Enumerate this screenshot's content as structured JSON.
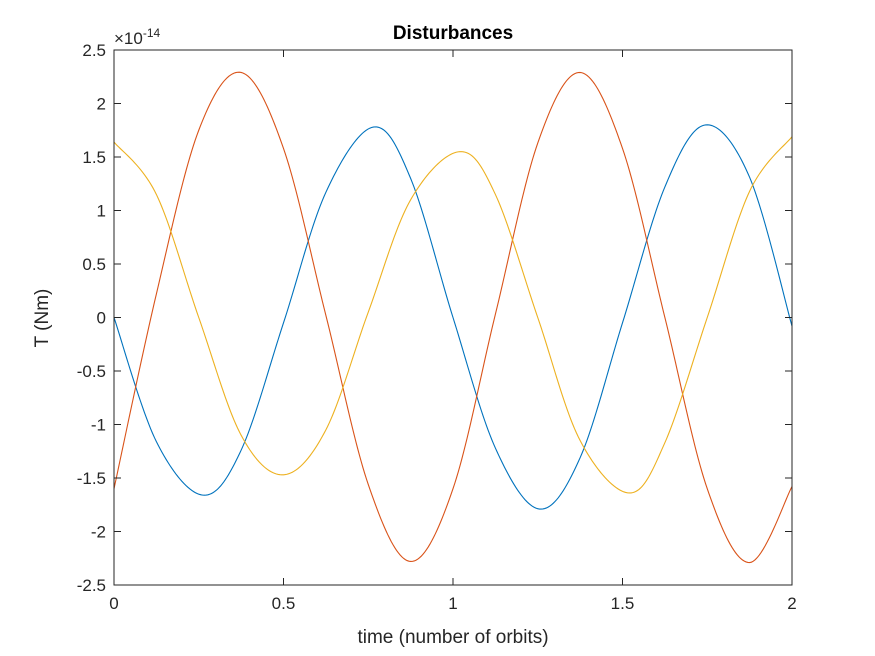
{
  "chart_data": {
    "type": "line",
    "title": "Disturbances",
    "xlabel": "time (number of orbits)",
    "ylabel": "T (Nm)",
    "exponent_base": "×10",
    "exponent_power": "-14",
    "xlim": [
      0,
      2
    ],
    "ylim": [
      -2.5,
      2.5
    ],
    "xticks": [
      0,
      0.5,
      1,
      1.5,
      2
    ],
    "xtick_labels": [
      "0",
      "0.5",
      "1",
      "1.5",
      "2"
    ],
    "yticks": [
      -2.5,
      -2,
      -1.5,
      -1,
      -0.5,
      0,
      0.5,
      1,
      1.5,
      2,
      2.5
    ],
    "ytick_labels": [
      "-2.5",
      "-2",
      "-1.5",
      "-1",
      "-0.5",
      "0",
      "0.5",
      "1",
      "1.5",
      "2",
      "2.5"
    ],
    "grid": false,
    "series": [
      {
        "color": "#0072BD",
        "x": [
          0,
          0.125,
          0.262,
          0.375,
          0.5,
          0.625,
          0.765,
          0.875,
          1.0,
          1.125,
          1.255,
          1.375,
          1.5,
          1.625,
          1.745,
          1.875,
          2.0
        ],
        "y": [
          0.0,
          -1.16,
          -1.66,
          -1.24,
          -0.05,
          1.17,
          1.78,
          1.3,
          0.0,
          -1.22,
          -1.79,
          -1.31,
          -0.05,
          1.22,
          1.8,
          1.31,
          -0.08
        ]
      },
      {
        "color": "#D95319",
        "x": [
          0,
          0.125,
          0.25,
          0.375,
          0.5,
          0.625,
          0.75,
          0.875,
          1.0,
          1.125,
          1.25,
          1.375,
          1.5,
          1.625,
          1.75,
          1.875,
          2.0
        ],
        "y": [
          -1.6,
          0.22,
          1.75,
          2.29,
          1.58,
          0.02,
          -1.56,
          -2.28,
          -1.6,
          0.03,
          1.63,
          2.29,
          1.58,
          0.0,
          -1.6,
          -2.29,
          -1.58
        ]
      },
      {
        "color": "#EDB120",
        "x": [
          0,
          0.125,
          0.25,
          0.375,
          0.5,
          0.625,
          0.75,
          0.875,
          1.02,
          1.125,
          1.25,
          1.375,
          1.52,
          1.625,
          1.75,
          1.875,
          2.0
        ],
        "y": [
          1.64,
          1.15,
          0.0,
          -1.1,
          -1.47,
          -1.05,
          0.05,
          1.1,
          1.55,
          1.15,
          0.0,
          -1.15,
          -1.64,
          -1.17,
          0.0,
          1.18,
          1.69
        ]
      }
    ]
  }
}
